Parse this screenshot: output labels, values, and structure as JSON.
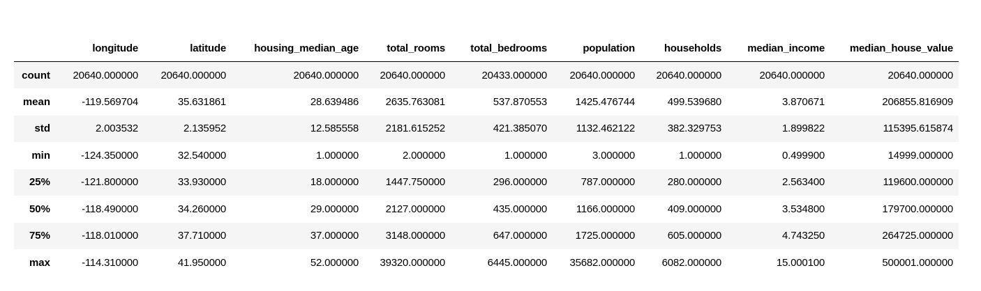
{
  "table": {
    "columns": [
      "",
      "longitude",
      "latitude",
      "housing_median_age",
      "total_rooms",
      "total_bedrooms",
      "population",
      "households",
      "median_income",
      "median_house_value"
    ],
    "rows": [
      {
        "label": "count",
        "cells": [
          "20640.000000",
          "20640.000000",
          "20640.000000",
          "20640.000000",
          "20433.000000",
          "20640.000000",
          "20640.000000",
          "20640.000000",
          "20640.000000"
        ]
      },
      {
        "label": "mean",
        "cells": [
          "-119.569704",
          "35.631861",
          "28.639486",
          "2635.763081",
          "537.870553",
          "1425.476744",
          "499.539680",
          "3.870671",
          "206855.816909"
        ]
      },
      {
        "label": "std",
        "cells": [
          "2.003532",
          "2.135952",
          "12.585558",
          "2181.615252",
          "421.385070",
          "1132.462122",
          "382.329753",
          "1.899822",
          "115395.615874"
        ]
      },
      {
        "label": "min",
        "cells": [
          "-124.350000",
          "32.540000",
          "1.000000",
          "2.000000",
          "1.000000",
          "3.000000",
          "1.000000",
          "0.499900",
          "14999.000000"
        ]
      },
      {
        "label": "25%",
        "cells": [
          "-121.800000",
          "33.930000",
          "18.000000",
          "1447.750000",
          "296.000000",
          "787.000000",
          "280.000000",
          "2.563400",
          "119600.000000"
        ]
      },
      {
        "label": "50%",
        "cells": [
          "-118.490000",
          "34.260000",
          "29.000000",
          "2127.000000",
          "435.000000",
          "1166.000000",
          "409.000000",
          "3.534800",
          "179700.000000"
        ]
      },
      {
        "label": "75%",
        "cells": [
          "-118.010000",
          "37.710000",
          "37.000000",
          "3148.000000",
          "647.000000",
          "1725.000000",
          "605.000000",
          "4.743250",
          "264725.000000"
        ]
      },
      {
        "label": "max",
        "cells": [
          "-114.310000",
          "41.950000",
          "52.000000",
          "39320.000000",
          "6445.000000",
          "35682.000000",
          "6082.000000",
          "15.000100",
          "500001.000000"
        ]
      }
    ]
  }
}
